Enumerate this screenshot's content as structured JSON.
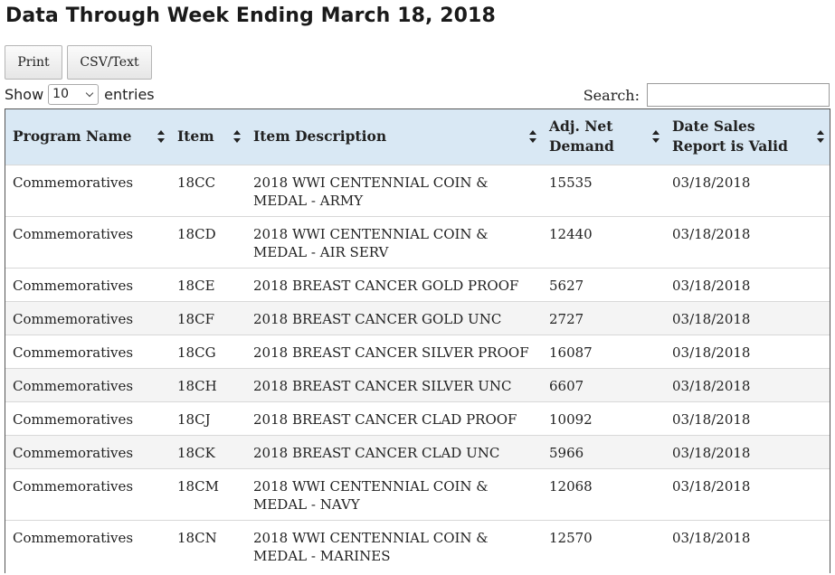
{
  "page": {
    "title": "Data Through Week Ending March 18, 2018"
  },
  "toolbar": {
    "print_label": "Print",
    "csv_label": "CSV/Text"
  },
  "length": {
    "show_label": "Show",
    "selected": "10",
    "entries_label": "entries"
  },
  "search": {
    "label": "Search:",
    "value": ""
  },
  "table": {
    "columns": [
      "Program Name",
      "Item",
      "Item Description",
      "Adj. Net Demand",
      "Date Sales Report is Valid"
    ],
    "rows": [
      {
        "program": "Commemoratives",
        "item": "18CC",
        "description": "2018 WWI CENTENNIAL COIN & MEDAL - ARMY",
        "demand": "15535",
        "date": "03/18/2018"
      },
      {
        "program": "Commemoratives",
        "item": "18CD",
        "description": "2018 WWI CENTENNIAL COIN & MEDAL - AIR SERV",
        "demand": "12440",
        "date": "03/18/2018"
      },
      {
        "program": "Commemoratives",
        "item": "18CE",
        "description": "2018 BREAST CANCER GOLD PROOF",
        "demand": "5627",
        "date": "03/18/2018"
      },
      {
        "program": "Commemoratives",
        "item": "18CF",
        "description": "2018 BREAST CANCER GOLD UNC",
        "demand": "2727",
        "date": "03/18/2018"
      },
      {
        "program": "Commemoratives",
        "item": "18CG",
        "description": "2018 BREAST CANCER SILVER PROOF",
        "demand": "16087",
        "date": "03/18/2018"
      },
      {
        "program": "Commemoratives",
        "item": "18CH",
        "description": "2018 BREAST CANCER SILVER UNC",
        "demand": "6607",
        "date": "03/18/2018"
      },
      {
        "program": "Commemoratives",
        "item": "18CJ",
        "description": "2018 BREAST CANCER CLAD PROOF",
        "demand": "10092",
        "date": "03/18/2018"
      },
      {
        "program": "Commemoratives",
        "item": "18CK",
        "description": "2018 BREAST CANCER CLAD UNC",
        "demand": "5966",
        "date": "03/18/2018"
      },
      {
        "program": "Commemoratives",
        "item": "18CM",
        "description": "2018 WWI CENTENNIAL COIN & MEDAL - NAVY",
        "demand": "12068",
        "date": "03/18/2018"
      },
      {
        "program": "Commemoratives",
        "item": "18CN",
        "description": "2018 WWI CENTENNIAL COIN & MEDAL - MARINES",
        "demand": "12570",
        "date": "03/18/2018"
      }
    ]
  },
  "colors": {
    "header_bg": "#d9e8f4",
    "stripe_bg": "#f4f4f4"
  }
}
